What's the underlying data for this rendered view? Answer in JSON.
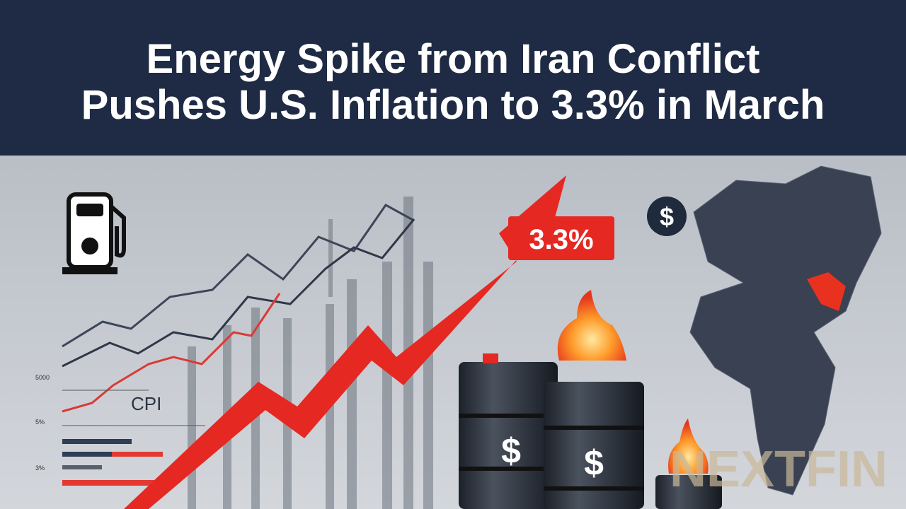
{
  "header": {
    "title_lines": [
      "Energy Spike from Iran Conflict",
      "Pushes U.S. Inflation to 3.3% in March"
    ]
  },
  "illustration": {
    "badge": "3.3%",
    "chart_label": "CPI",
    "axis_labels": [
      "5000",
      "5%",
      "3%"
    ],
    "dollar_signs": [
      "$",
      "$",
      "$"
    ],
    "watermark": "NEXTFIN"
  }
}
